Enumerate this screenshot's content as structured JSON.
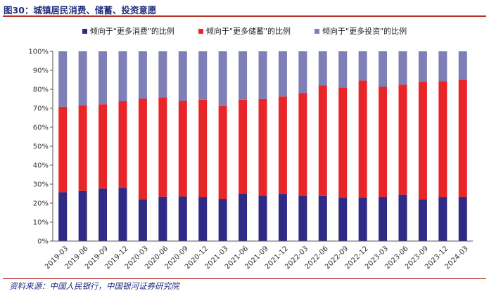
{
  "header": {
    "title": "图30：城镇居民消费、储蓄、投资意愿"
  },
  "footer": {
    "source": "资料来源：中国人民银行，中国银河证券研究院"
  },
  "colors": {
    "consume": "#2e2a85",
    "save": "#e8262a",
    "invest": "#7f7fb8",
    "accent": "#b8322c",
    "title": "#1f2e7a"
  },
  "chart_data": {
    "type": "bar",
    "stacked": true,
    "categories": [
      "2019-03",
      "2019-06",
      "2019-09",
      "2019-12",
      "2020-03",
      "2020-06",
      "2020-09",
      "2020-12",
      "2021-03",
      "2021-06",
      "2021-09",
      "2021-12",
      "2022-03",
      "2022-06",
      "2022-09",
      "2022-12",
      "2023-03",
      "2023-06",
      "2023-09",
      "2023-12",
      "2024-03"
    ],
    "series": [
      {
        "name": "倾向于\"更多消费\"的比例",
        "color": "#2e2a85",
        "values": [
          25.8,
          26.4,
          27.7,
          28.0,
          22.0,
          23.4,
          23.5,
          23.3,
          22.2,
          25.1,
          24.0,
          24.8,
          23.7,
          23.8,
          22.8,
          22.8,
          23.3,
          24.5,
          22.0,
          23.3,
          23.3
        ]
      },
      {
        "name": "倾向于\"更多储蓄\"的比例",
        "color": "#e8262a",
        "values": [
          45.0,
          45.2,
          44.4,
          45.7,
          53.0,
          52.3,
          50.4,
          51.2,
          49.0,
          49.4,
          50.9,
          51.4,
          54.3,
          58.3,
          58.1,
          61.8,
          58.0,
          58.0,
          62.0,
          61.0,
          61.8
        ]
      },
      {
        "name": "倾向于\"更多投资\"的比例",
        "color": "#7f7fb8",
        "values": [
          29.2,
          28.4,
          27.9,
          26.3,
          25.0,
          24.3,
          26.1,
          25.5,
          28.8,
          25.5,
          25.1,
          23.8,
          22.0,
          17.9,
          19.1,
          15.4,
          18.7,
          17.5,
          16.0,
          15.7,
          14.9
        ]
      }
    ],
    "ylim": [
      0,
      100
    ],
    "yticks": [
      "0%",
      "10%",
      "20%",
      "30%",
      "40%",
      "50%",
      "60%",
      "70%",
      "80%",
      "90%",
      "100%"
    ],
    "legend": "top"
  }
}
